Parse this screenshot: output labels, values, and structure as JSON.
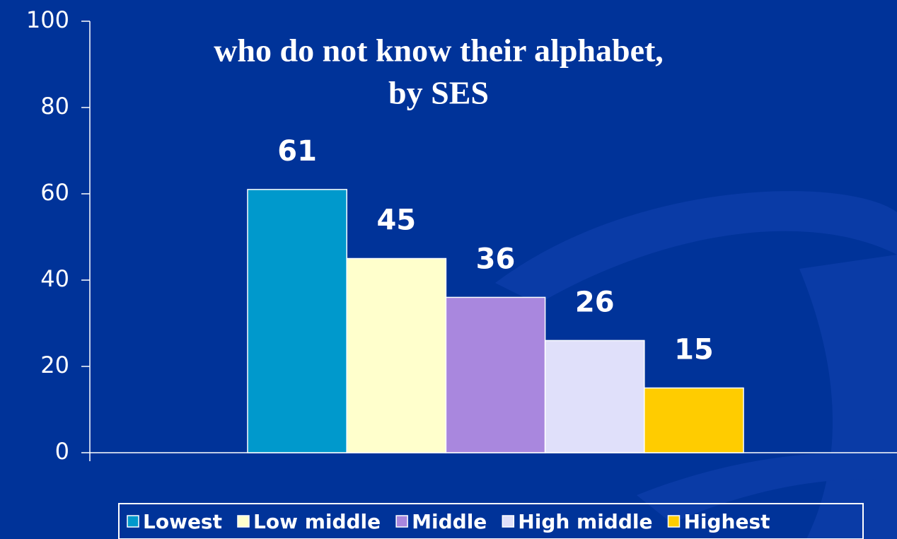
{
  "chart_data": {
    "type": "bar",
    "title": [
      "who do not know their alphabet,",
      "by SES"
    ],
    "series": [
      {
        "name": "Lowest",
        "color": "#0099cc",
        "values": [
          61
        ]
      },
      {
        "name": "Low middle",
        "color": "#ffffcc",
        "values": [
          45
        ]
      },
      {
        "name": "Middle",
        "color": "#a987de",
        "values": [
          36
        ]
      },
      {
        "name": "High middle",
        "color": "#e0e0fa",
        "values": [
          26
        ]
      },
      {
        "name": "Highest",
        "color": "#ffcc00",
        "values": [
          15
        ]
      }
    ],
    "ylim": [
      0,
      100
    ],
    "yticks": [
      0,
      20,
      40,
      60,
      80,
      100
    ],
    "legend": "bottom"
  }
}
